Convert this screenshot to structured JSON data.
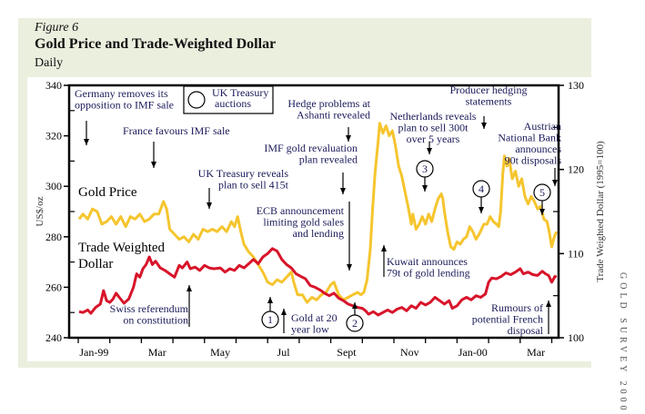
{
  "figure": {
    "label": "Figure 6",
    "title": "Gold Price and Trade-Weighted Dollar",
    "subtitle": "Daily",
    "side_label": "GOLD SURVEY 2000"
  },
  "colors": {
    "gold": "#f5c52e",
    "dollar": "#d8142a",
    "annotation_text": "#1a1a5a",
    "axis": "#000000",
    "panel_bg": "#ebefde"
  },
  "chart_data": {
    "type": "line",
    "title": "Gold Price and Trade-Weighted Dollar",
    "subtitle": "Daily",
    "xlabel": "",
    "x_unit": "months since start of Jan 1999",
    "x_ticks": [
      0,
      1,
      2,
      3,
      4,
      5,
      6,
      7,
      8,
      9,
      10,
      11,
      12,
      13,
      14,
      15
    ],
    "x_tick_labels": [
      {
        "label": "Jan-99",
        "at": 0.5
      },
      {
        "label": "Mar",
        "at": 2.5
      },
      {
        "label": "May",
        "at": 4.5
      },
      {
        "label": "Jul",
        "at": 6.5
      },
      {
        "label": "Sept",
        "at": 8.5
      },
      {
        "label": "Nov",
        "at": 10.5
      },
      {
        "label": "Jan-00",
        "at": 12.5
      },
      {
        "label": "Mar",
        "at": 14.5
      }
    ],
    "xlim": [
      0,
      15.2
    ],
    "y_left": {
      "label": "US$/oz",
      "lim": [
        240,
        340
      ],
      "ticks": [
        240,
        260,
        280,
        300,
        320,
        340
      ],
      "minor_ticks": [
        250,
        270,
        290,
        310,
        330
      ]
    },
    "y_right": {
      "label": "Trade Weighted Dollar (1995=100)",
      "lim": [
        100,
        130
      ],
      "ticks": [
        100,
        110,
        120,
        130
      ],
      "minor_ticks": [
        105,
        115,
        125
      ]
    },
    "legend": [
      {
        "name": "Gold Price",
        "placement": "left, upper-middle"
      },
      {
        "name": "Trade Weighted Dollar",
        "placement": "left, middle"
      },
      {
        "name": "UK Treasury auctions",
        "symbol": "circle",
        "placement": "top-left"
      }
    ],
    "series": [
      {
        "name": "Gold Price",
        "axis": "left",
        "points": [
          [
            0.03,
            287
          ],
          [
            0.15,
            289
          ],
          [
            0.3,
            287
          ],
          [
            0.45,
            291
          ],
          [
            0.6,
            290
          ],
          [
            0.75,
            285
          ],
          [
            0.9,
            286
          ],
          [
            1.05,
            288
          ],
          [
            1.2,
            285
          ],
          [
            1.35,
            288
          ],
          [
            1.5,
            284
          ],
          [
            1.65,
            288
          ],
          [
            1.8,
            287
          ],
          [
            1.95,
            289
          ],
          [
            2.1,
            286
          ],
          [
            2.25,
            287
          ],
          [
            2.4,
            289
          ],
          [
            2.55,
            289
          ],
          [
            2.7,
            294
          ],
          [
            2.8,
            291
          ],
          [
            2.9,
            283
          ],
          [
            3.05,
            281
          ],
          [
            3.2,
            279
          ],
          [
            3.35,
            280
          ],
          [
            3.5,
            278
          ],
          [
            3.65,
            281
          ],
          [
            3.8,
            279
          ],
          [
            3.95,
            283
          ],
          [
            4.1,
            282
          ],
          [
            4.25,
            283
          ],
          [
            4.4,
            282
          ],
          [
            4.55,
            284
          ],
          [
            4.7,
            282
          ],
          [
            4.85,
            286
          ],
          [
            4.95,
            284
          ],
          [
            5.05,
            288
          ],
          [
            5.15,
            282
          ],
          [
            5.25,
            277
          ],
          [
            5.4,
            274
          ],
          [
            5.55,
            272
          ],
          [
            5.7,
            269
          ],
          [
            5.85,
            266
          ],
          [
            6.0,
            262
          ],
          [
            6.15,
            261
          ],
          [
            6.3,
            263
          ],
          [
            6.45,
            262
          ],
          [
            6.6,
            264
          ],
          [
            6.75,
            266
          ],
          [
            6.85,
            261
          ],
          [
            6.95,
            257
          ],
          [
            7.1,
            257
          ],
          [
            7.25,
            254
          ],
          [
            7.4,
            256
          ],
          [
            7.55,
            255
          ],
          [
            7.7,
            257
          ],
          [
            7.85,
            258
          ],
          [
            8.0,
            261
          ],
          [
            8.1,
            262
          ],
          [
            8.25,
            257
          ],
          [
            8.4,
            255
          ],
          [
            8.55,
            256
          ],
          [
            8.7,
            257
          ],
          [
            8.85,
            258
          ],
          [
            8.95,
            257
          ],
          [
            9.05,
            258
          ],
          [
            9.15,
            263
          ],
          [
            9.25,
            275
          ],
          [
            9.32,
            290
          ],
          [
            9.4,
            305
          ],
          [
            9.5,
            318
          ],
          [
            9.55,
            325
          ],
          [
            9.65,
            321
          ],
          [
            9.75,
            324
          ],
          [
            9.85,
            320
          ],
          [
            9.95,
            322
          ],
          [
            10.05,
            316
          ],
          [
            10.15,
            308
          ],
          [
            10.25,
            304
          ],
          [
            10.35,
            298
          ],
          [
            10.45,
            292
          ],
          [
            10.55,
            285
          ],
          [
            10.6,
            289
          ],
          [
            10.7,
            283
          ],
          [
            10.8,
            285
          ],
          [
            10.9,
            288
          ],
          [
            11.0,
            285
          ],
          [
            11.1,
            289
          ],
          [
            11.2,
            286
          ],
          [
            11.3,
            291
          ],
          [
            11.4,
            295
          ],
          [
            11.5,
            297
          ],
          [
            11.55,
            295
          ],
          [
            11.6,
            290
          ],
          [
            11.7,
            282
          ],
          [
            11.8,
            276
          ],
          [
            11.9,
            275
          ],
          [
            12.0,
            278
          ],
          [
            12.1,
            277
          ],
          [
            12.2,
            279
          ],
          [
            12.3,
            280
          ],
          [
            12.4,
            284
          ],
          [
            12.5,
            282
          ],
          [
            12.6,
            279
          ],
          [
            12.7,
            281
          ],
          [
            12.85,
            285
          ],
          [
            12.95,
            285
          ],
          [
            13.05,
            288
          ],
          [
            13.15,
            286
          ],
          [
            13.25,
            285
          ],
          [
            13.32,
            284
          ],
          [
            13.38,
            290
          ],
          [
            13.45,
            305
          ],
          [
            13.5,
            312
          ],
          [
            13.58,
            308
          ],
          [
            13.65,
            311
          ],
          [
            13.75,
            303
          ],
          [
            13.85,
            306
          ],
          [
            13.95,
            300
          ],
          [
            14.05,
            303
          ],
          [
            14.15,
            296
          ],
          [
            14.25,
            293
          ],
          [
            14.35,
            296
          ],
          [
            14.45,
            294
          ],
          [
            14.55,
            291
          ],
          [
            14.65,
            292
          ],
          [
            14.75,
            287
          ],
          [
            14.85,
            286
          ],
          [
            14.92,
            282
          ],
          [
            15.0,
            276
          ],
          [
            15.08,
            280
          ],
          [
            15.15,
            282
          ]
        ]
      },
      {
        "name": "Trade Weighted Dollar",
        "axis": "right",
        "points": [
          [
            0.03,
            103.1
          ],
          [
            0.15,
            103.0
          ],
          [
            0.3,
            103.3
          ],
          [
            0.4,
            102.9
          ],
          [
            0.55,
            103.6
          ],
          [
            0.7,
            104.0
          ],
          [
            0.8,
            105.6
          ],
          [
            0.9,
            104.4
          ],
          [
            1.0,
            104.2
          ],
          [
            1.1,
            104.6
          ],
          [
            1.2,
            105.3
          ],
          [
            1.3,
            104.8
          ],
          [
            1.45,
            104.1
          ],
          [
            1.6,
            104.6
          ],
          [
            1.75,
            106.0
          ],
          [
            1.85,
            107.6
          ],
          [
            1.95,
            107.2
          ],
          [
            2.05,
            108.2
          ],
          [
            2.15,
            108.7
          ],
          [
            2.25,
            109.6
          ],
          [
            2.35,
            108.7
          ],
          [
            2.45,
            109.1
          ],
          [
            2.6,
            108.3
          ],
          [
            2.75,
            108.0
          ],
          [
            2.9,
            107.6
          ],
          [
            3.05,
            107.2
          ],
          [
            3.2,
            108.6
          ],
          [
            3.3,
            108.3
          ],
          [
            3.45,
            109.0
          ],
          [
            3.55,
            108.2
          ],
          [
            3.7,
            108.4
          ],
          [
            3.85,
            108.0
          ],
          [
            4.0,
            108.6
          ],
          [
            4.15,
            108.3
          ],
          [
            4.3,
            108.2
          ],
          [
            4.5,
            108.3
          ],
          [
            4.65,
            107.8
          ],
          [
            4.8,
            108.2
          ],
          [
            4.95,
            108.0
          ],
          [
            5.1,
            108.6
          ],
          [
            5.25,
            108.3
          ],
          [
            5.4,
            108.8
          ],
          [
            5.55,
            109.3
          ],
          [
            5.7,
            108.8
          ],
          [
            5.85,
            109.6
          ],
          [
            6.0,
            110.0
          ],
          [
            6.15,
            110.6
          ],
          [
            6.3,
            110.3
          ],
          [
            6.45,
            109.3
          ],
          [
            6.6,
            108.7
          ],
          [
            6.75,
            108.3
          ],
          [
            6.9,
            107.6
          ],
          [
            7.05,
            107.3
          ],
          [
            7.2,
            107.0
          ],
          [
            7.35,
            106.2
          ],
          [
            7.5,
            106.0
          ],
          [
            7.65,
            105.7
          ],
          [
            7.8,
            105.3
          ],
          [
            7.95,
            105.0
          ],
          [
            8.1,
            105.3
          ],
          [
            8.25,
            104.7
          ],
          [
            8.4,
            104.4
          ],
          [
            8.55,
            104.0
          ],
          [
            8.7,
            103.8
          ],
          [
            8.85,
            103.6
          ],
          [
            9.0,
            103.5
          ],
          [
            9.1,
            103.2
          ],
          [
            9.2,
            102.8
          ],
          [
            9.35,
            103.1
          ],
          [
            9.5,
            102.7
          ],
          [
            9.65,
            103.0
          ],
          [
            9.8,
            103.3
          ],
          [
            9.95,
            103.0
          ],
          [
            10.1,
            103.4
          ],
          [
            10.25,
            103.6
          ],
          [
            10.4,
            103.2
          ],
          [
            10.55,
            103.8
          ],
          [
            10.7,
            103.5
          ],
          [
            10.85,
            104.2
          ],
          [
            11.0,
            103.9
          ],
          [
            11.15,
            104.2
          ],
          [
            11.3,
            104.8
          ],
          [
            11.45,
            104.4
          ],
          [
            11.6,
            104.0
          ],
          [
            11.75,
            104.4
          ],
          [
            11.85,
            103.5
          ],
          [
            12.0,
            103.8
          ],
          [
            12.15,
            104.5
          ],
          [
            12.3,
            104.8
          ],
          [
            12.45,
            104.5
          ],
          [
            12.6,
            105.0
          ],
          [
            12.75,
            104.8
          ],
          [
            12.9,
            105.2
          ],
          [
            13.0,
            106.6
          ],
          [
            13.1,
            107.1
          ],
          [
            13.25,
            107.0
          ],
          [
            13.4,
            107.3
          ],
          [
            13.55,
            107.7
          ],
          [
            13.7,
            107.5
          ],
          [
            13.85,
            107.8
          ],
          [
            14.0,
            108.2
          ],
          [
            14.1,
            107.6
          ],
          [
            14.25,
            107.8
          ],
          [
            14.4,
            107.5
          ],
          [
            14.55,
            107.4
          ],
          [
            14.7,
            107.9
          ],
          [
            14.8,
            107.6
          ],
          [
            14.9,
            107.4
          ],
          [
            15.0,
            106.6
          ],
          [
            15.1,
            107.3
          ],
          [
            15.15,
            107.2
          ]
        ]
      }
    ],
    "annotations": [
      {
        "id": "germany",
        "text": [
          "Germany removes its",
          "opposition to IMF sale"
        ],
        "arrow": "down"
      },
      {
        "id": "france",
        "text": [
          "France favours IMF sale"
        ],
        "arrow": "down"
      },
      {
        "id": "uk-reveals",
        "text": [
          "UK Treasury reveals",
          "plan to sell 415t"
        ],
        "arrow": "down"
      },
      {
        "id": "swiss",
        "text": [
          "Swiss referendum",
          "on constitution"
        ],
        "arrow": "up"
      },
      {
        "id": "gold-low",
        "text": [
          "Gold at 20",
          "year low"
        ],
        "arrow": "up"
      },
      {
        "id": "ecb",
        "text": [
          "ECB announcement",
          "limiting gold sales",
          "and lending"
        ],
        "arrow": "down"
      },
      {
        "id": "hedge",
        "text": [
          "Hedge problems at",
          "Ashanti revealed"
        ],
        "arrow": "down"
      },
      {
        "id": "imf-reval",
        "text": [
          "IMF gold revaluation",
          "plan revealed"
        ],
        "arrow": "down"
      },
      {
        "id": "netherlands",
        "text": [
          "Netherlands reveals",
          "plan to sell 300t",
          "over 5 years"
        ],
        "arrow": "down"
      },
      {
        "id": "kuwait",
        "text": [
          "Kuwait announces",
          "79t of gold lending"
        ],
        "arrow": "up"
      },
      {
        "id": "producer",
        "text": [
          "Producer hedging",
          "statements"
        ],
        "arrow": "down"
      },
      {
        "id": "austrian",
        "text": [
          "Austrian",
          "National Bank",
          "announces",
          "90t disposals"
        ],
        "arrow": "down"
      },
      {
        "id": "french",
        "text": [
          "Rumours of",
          "potential French",
          "disposal"
        ],
        "arrow": "up"
      }
    ],
    "auctions": [
      {
        "label": "1",
        "month": 6.85,
        "arrow": "up"
      },
      {
        "label": "2",
        "month": 8.95,
        "arrow": "up"
      },
      {
        "label": "3",
        "month": 11.45,
        "arrow": "down"
      },
      {
        "label": "4",
        "month": 13.1,
        "arrow": "down"
      },
      {
        "label": "5",
        "month": 14.6,
        "arrow": "down"
      }
    ],
    "series_labels": {
      "gold": "Gold Price",
      "dollar_1": "Trade Weighted",
      "dollar_2": "Dollar"
    },
    "legend_box": {
      "line1": "UK Treasury",
      "line2": "auctions"
    }
  }
}
